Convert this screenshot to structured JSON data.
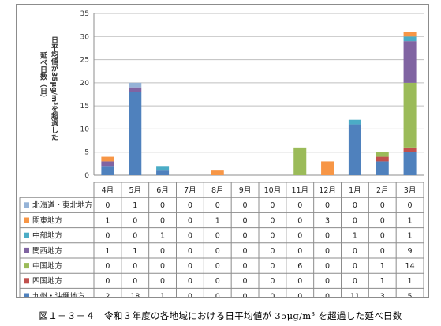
{
  "chart_data": {
    "type": "bar",
    "stacked": true,
    "ylabel": "日平均値が35μg/m³を超過した延べ日数（日）",
    "ylim": [
      0,
      35
    ],
    "yticks": [
      0,
      5,
      10,
      15,
      20,
      25,
      30,
      35
    ],
    "categories": [
      "4月",
      "5月",
      "6月",
      "7月",
      "8月",
      "9月",
      "10月",
      "11月",
      "12月",
      "1月",
      "2月",
      "3月"
    ],
    "series": [
      {
        "name": "九州・沖縄地方",
        "color": "#4f81bd",
        "values": [
          2,
          18,
          1,
          0,
          0,
          0,
          0,
          0,
          0,
          11,
          3,
          5
        ]
      },
      {
        "name": "四国地方",
        "color": "#c0504d",
        "values": [
          0,
          0,
          0,
          0,
          0,
          0,
          0,
          0,
          0,
          0,
          1,
          1
        ]
      },
      {
        "name": "中国地方",
        "color": "#9bbb59",
        "values": [
          0,
          0,
          0,
          0,
          0,
          0,
          0,
          6,
          0,
          0,
          1,
          14
        ]
      },
      {
        "name": "関西地方",
        "color": "#8064a2",
        "values": [
          1,
          1,
          0,
          0,
          0,
          0,
          0,
          0,
          0,
          0,
          0,
          9
        ]
      },
      {
        "name": "中部地方",
        "color": "#4bacc6",
        "values": [
          0,
          0,
          1,
          0,
          0,
          0,
          0,
          0,
          0,
          1,
          0,
          1
        ]
      },
      {
        "name": "関東地方",
        "color": "#f79646",
        "values": [
          1,
          0,
          0,
          0,
          1,
          0,
          0,
          0,
          3,
          0,
          0,
          1
        ]
      },
      {
        "name": "北海道・東北地方",
        "color": "#95b3d7",
        "values": [
          0,
          1,
          0,
          0,
          0,
          0,
          0,
          0,
          0,
          0,
          0,
          0
        ]
      }
    ],
    "table_row_order": [
      "北海道・東北地方",
      "関東地方",
      "中部地方",
      "関西地方",
      "中国地方",
      "四国地方",
      "九州・沖縄地方"
    ],
    "grid": true
  },
  "caption": "図１－３－４　令和３年度の各地域における日平均値が 35μg/m³ を超過した延べ日数"
}
